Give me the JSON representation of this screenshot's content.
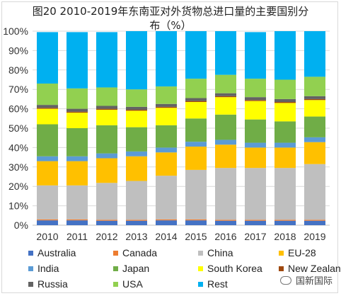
{
  "title_line1": "图20 2010-2019年东南亚对外货物总进口量的主要国别分",
  "title_line2": "布（%）",
  "watermark": "国新国际",
  "chart_data": {
    "type": "bar",
    "stacked": true,
    "percent_stacked": true,
    "title": "图20 2010-2019年东南亚对外货物总进口量的主要国别分布（%）",
    "categories": [
      "2010",
      "2011",
      "2012",
      "2013",
      "2014",
      "2015",
      "2016",
      "2017",
      "2018",
      "2019"
    ],
    "ylim": [
      0,
      100
    ],
    "yticks": [
      "0%",
      "10%",
      "20%",
      "30%",
      "40%",
      "50%",
      "60%",
      "70%",
      "80%",
      "90%",
      "100%"
    ],
    "grid": true,
    "legend_position": "bottom",
    "series": [
      {
        "name": "Australia",
        "color": "#4472c4",
        "values": [
          2.5,
          2.5,
          2.3,
          2.3,
          2.5,
          2.5,
          2.3,
          2.3,
          2.3,
          2.3
        ]
      },
      {
        "name": "Canada",
        "color": "#ed7d31",
        "values": [
          0.5,
          0.5,
          0.5,
          0.5,
          0.5,
          0.5,
          0.5,
          0.5,
          0.5,
          0.5
        ]
      },
      {
        "name": "China",
        "color": "#bfbfbf",
        "values": [
          17.5,
          17.5,
          19,
          20,
          22.5,
          25.5,
          26.7,
          26.7,
          26.7,
          28.7
        ]
      },
      {
        "name": "EU-28",
        "color": "#ffc000",
        "values": [
          12.5,
          12.5,
          12.7,
          12.7,
          12,
          12,
          12,
          10.5,
          10.5,
          11.3
        ]
      },
      {
        "name": "India",
        "color": "#5b9bd5",
        "values": [
          2.5,
          2.5,
          2.5,
          2.5,
          2.5,
          2.5,
          2.5,
          2.5,
          2.5,
          2.5
        ]
      },
      {
        "name": "Japan",
        "color": "#70ad47",
        "values": [
          16.5,
          14.5,
          14.5,
          12.5,
          11.5,
          12,
          13,
          12,
          11,
          10.7
        ]
      },
      {
        "name": "South Korea",
        "color": "#ffff00",
        "values": [
          8,
          8,
          8,
          8.5,
          9,
          8.5,
          9,
          9.5,
          9.5,
          8.5
        ]
      },
      {
        "name": "New Zealand",
        "color": "#9e480e",
        "values": [
          0.5,
          0.5,
          0.5,
          0.5,
          0.5,
          0.5,
          0.5,
          0.5,
          0.5,
          0.5
        ]
      },
      {
        "name": "Russia",
        "color": "#636363",
        "values": [
          1.5,
          1.5,
          1.5,
          1.5,
          1.5,
          1.5,
          1.5,
          1.5,
          1.5,
          1.5
        ]
      },
      {
        "name": "USA",
        "color": "#92d050",
        "values": [
          11,
          10.5,
          9.5,
          9,
          9,
          10,
          9.5,
          9.5,
          10,
          10
        ]
      },
      {
        "name": "Rest",
        "color": "#00b0f0",
        "values": [
          26.5,
          29,
          28.5,
          30,
          28.5,
          24.5,
          22.5,
          24,
          25,
          23.5
        ]
      }
    ]
  }
}
